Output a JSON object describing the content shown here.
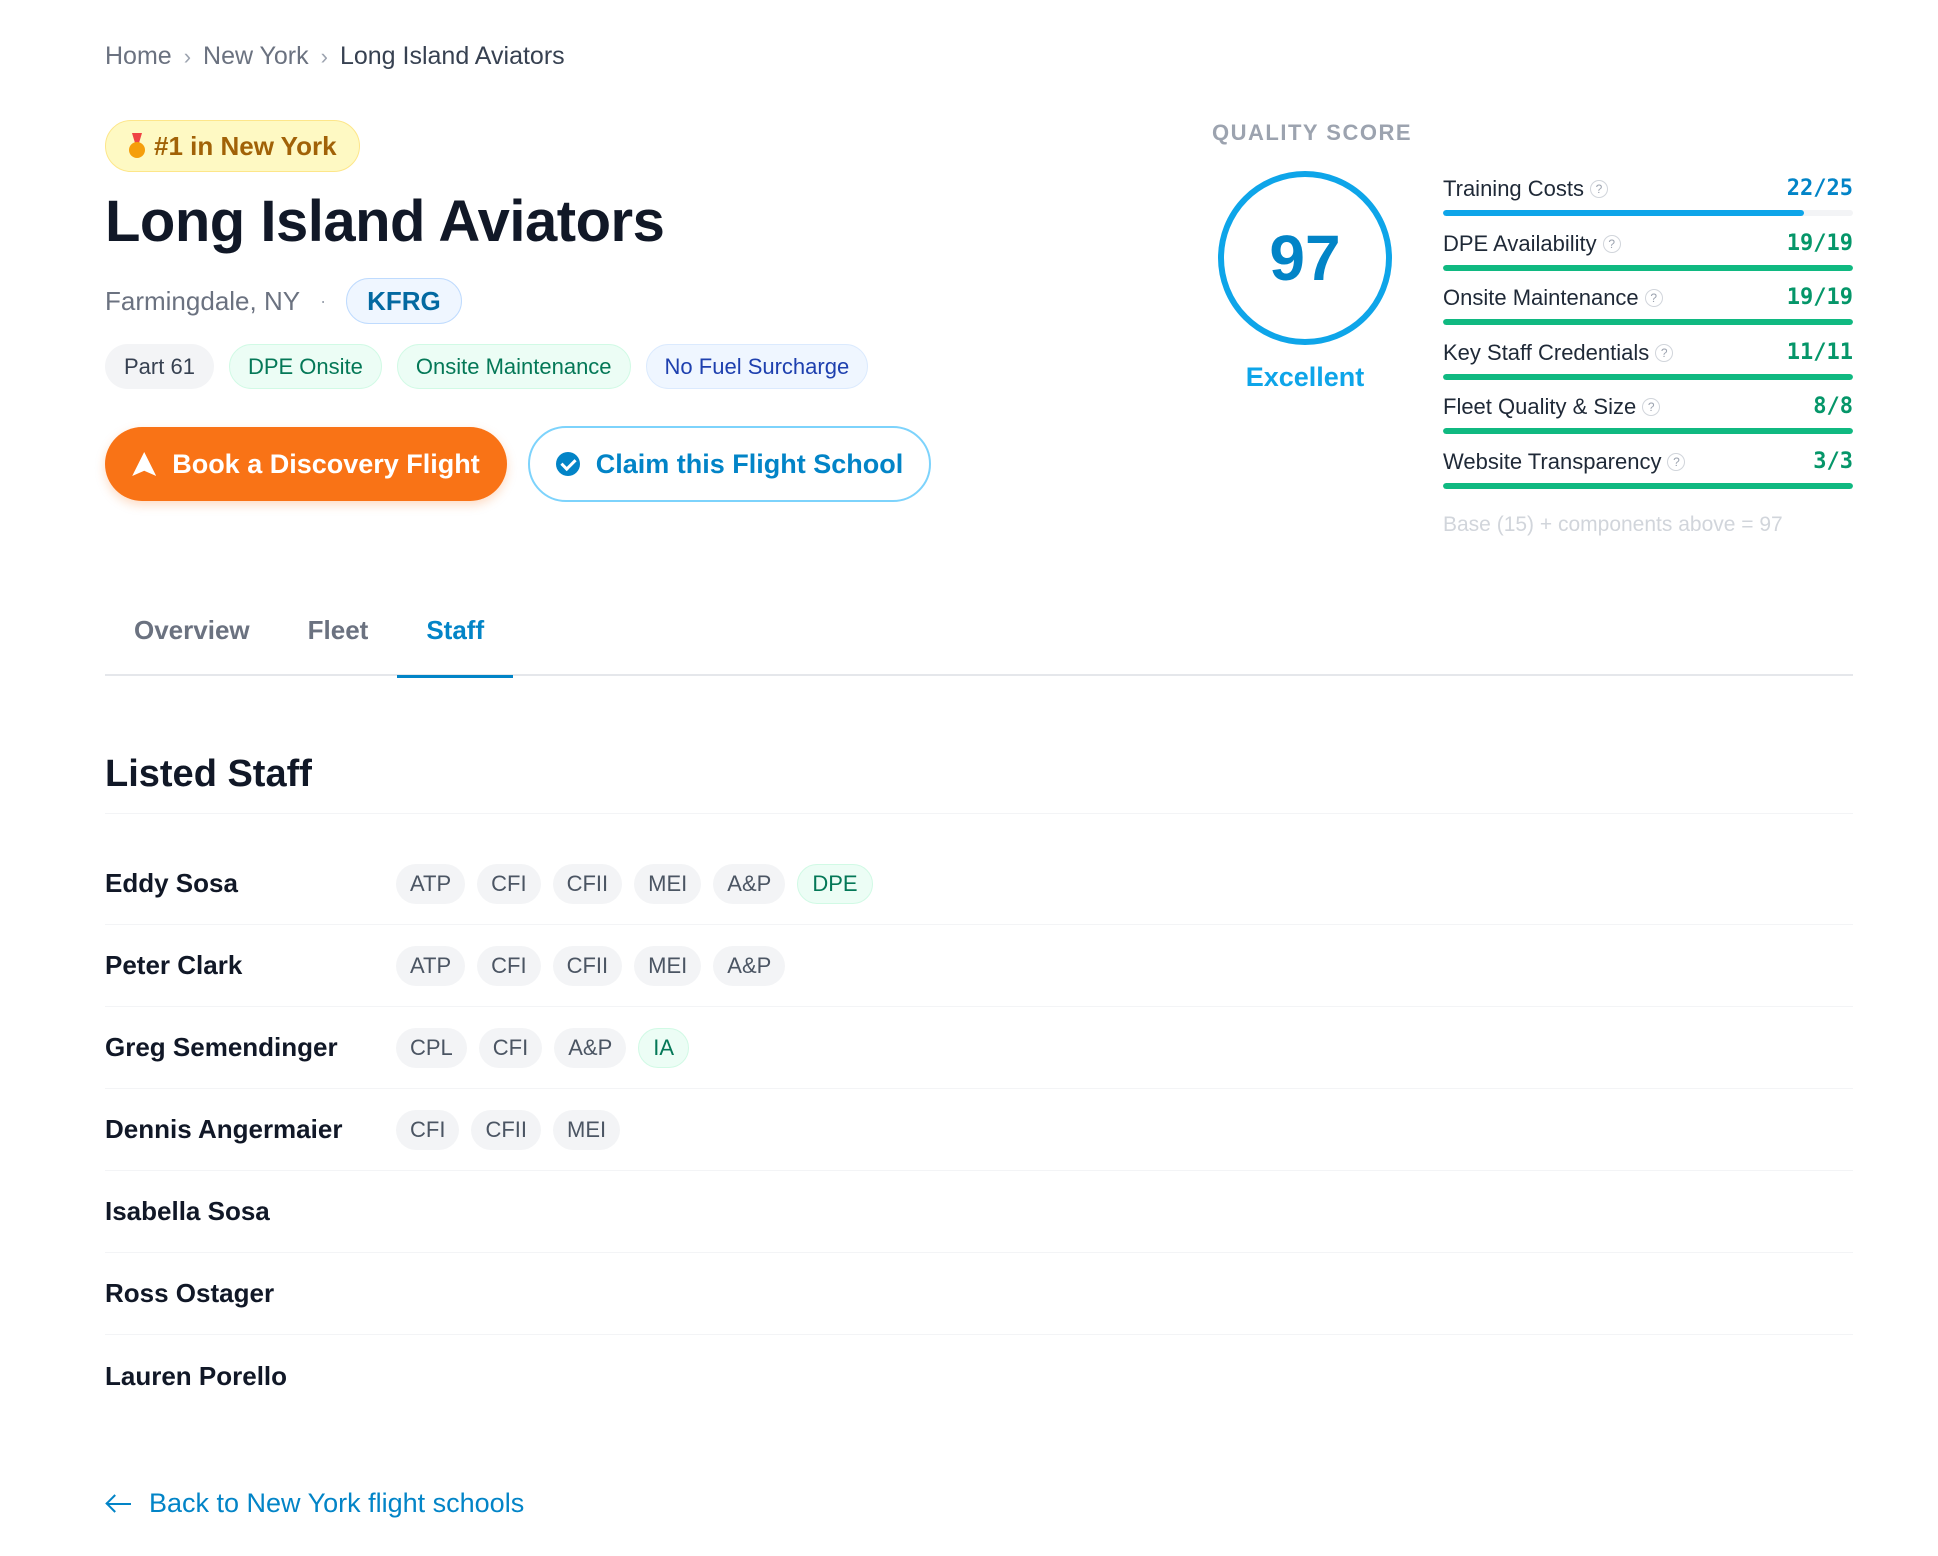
{
  "breadcrumb": {
    "items": [
      "Home",
      "New York",
      "Long Island Aviators"
    ],
    "separator": "›"
  },
  "header": {
    "rank_badge": "#1 in New York",
    "school_name": "Long Island Aviators",
    "location": "Farmingdale, NY",
    "location_separator": "·",
    "airport_code": "KFRG",
    "tags": [
      "Part 61",
      "DPE Onsite",
      "Onsite Maintenance",
      "No Fuel Surcharge"
    ],
    "book_button": "Book a Discovery Flight",
    "claim_button": "Claim this Flight School"
  },
  "quality_score": {
    "label": "QUALITY SCORE",
    "score": "97",
    "rating": "Excellent",
    "metrics": [
      {
        "label": "Training Costs",
        "value": "22/25",
        "fraction": 0.88,
        "color": "#0ea5e9",
        "value_color": "#0284c7"
      },
      {
        "label": "DPE Availability",
        "value": "19/19",
        "fraction": 1.0,
        "color": "#10b981",
        "value_color": "#059669"
      },
      {
        "label": "Onsite Maintenance",
        "value": "19/19",
        "fraction": 1.0,
        "color": "#10b981",
        "value_color": "#059669"
      },
      {
        "label": "Key Staff Credentials",
        "value": "11/11",
        "fraction": 1.0,
        "color": "#10b981",
        "value_color": "#059669"
      },
      {
        "label": "Fleet Quality & Size",
        "value": "8/8",
        "fraction": 1.0,
        "color": "#10b981",
        "value_color": "#059669"
      },
      {
        "label": "Website Transparency",
        "value": "3/3",
        "fraction": 1.0,
        "color": "#10b981",
        "value_color": "#059669"
      }
    ],
    "base_note": "Base (15) + components above = 97"
  },
  "tabs": [
    {
      "label": "Overview",
      "active": false
    },
    {
      "label": "Fleet",
      "active": false
    },
    {
      "label": "Staff",
      "active": true
    }
  ],
  "staff_section": {
    "title": "Listed Staff",
    "staff": [
      {
        "name": "Eddy Sosa",
        "credentials": [
          {
            "label": "ATP"
          },
          {
            "label": "CFI"
          },
          {
            "label": "CFII"
          },
          {
            "label": "MEI"
          },
          {
            "label": "A&P"
          },
          {
            "label": "DPE",
            "highlight": true
          }
        ]
      },
      {
        "name": "Peter Clark",
        "credentials": [
          {
            "label": "ATP"
          },
          {
            "label": "CFI"
          },
          {
            "label": "CFII"
          },
          {
            "label": "MEI"
          },
          {
            "label": "A&P"
          }
        ]
      },
      {
        "name": "Greg Semendinger",
        "credentials": [
          {
            "label": "CPL"
          },
          {
            "label": "CFI"
          },
          {
            "label": "A&P"
          },
          {
            "label": "IA",
            "highlight": true
          }
        ]
      },
      {
        "name": "Dennis Angermaier",
        "credentials": [
          {
            "label": "CFI"
          },
          {
            "label": "CFII"
          },
          {
            "label": "MEI"
          }
        ]
      },
      {
        "name": "Isabella Sosa",
        "credentials": []
      },
      {
        "name": "Ross Ostager",
        "credentials": []
      },
      {
        "name": "Lauren Porello",
        "credentials": []
      }
    ]
  },
  "footer": {
    "back_link": "Back to New York flight schools"
  }
}
